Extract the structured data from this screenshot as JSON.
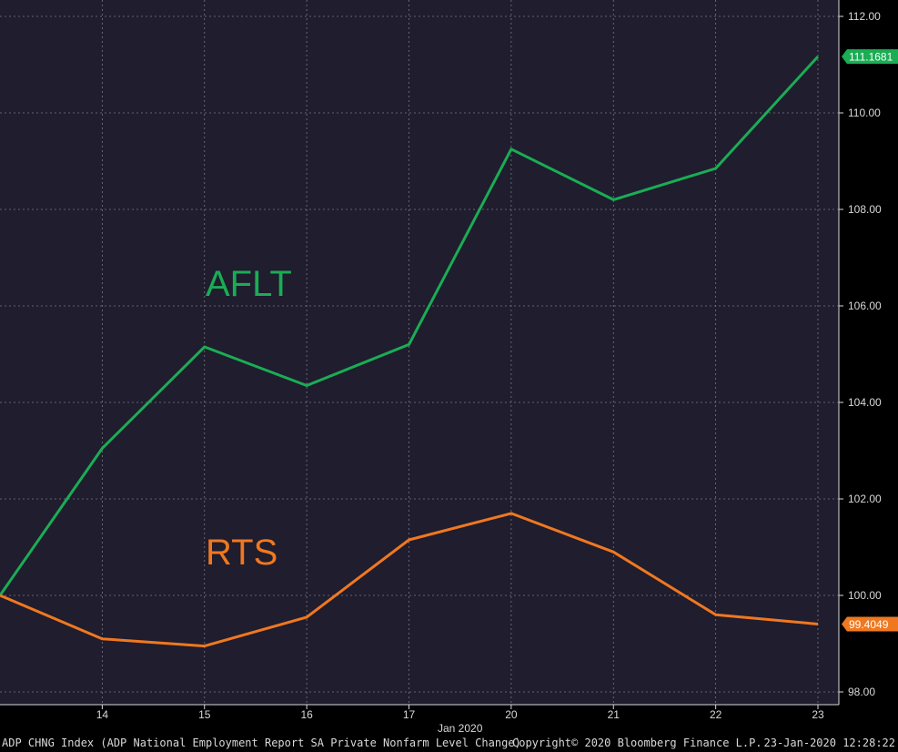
{
  "chart_data": {
    "type": "line",
    "x": [
      "13",
      "14",
      "15",
      "16",
      "17",
      "20",
      "21",
      "22",
      "23"
    ],
    "x_tick_labels": [
      "14",
      "15",
      "16",
      "17",
      "20",
      "21",
      "22",
      "23"
    ],
    "x_sublabel": "Jan 2020",
    "ylim": [
      97.8,
      112.5
    ],
    "y_ticks": [
      "98.00",
      "100.00",
      "102.00",
      "104.00",
      "106.00",
      "108.00",
      "110.00",
      "112.00"
    ],
    "grid": true,
    "series": [
      {
        "name": "AFLT",
        "color": "#1aad54",
        "values": [
          100.0,
          103.05,
          105.15,
          104.35,
          105.2,
          109.25,
          108.2,
          108.85,
          111.1681
        ],
        "last_label": "111.1681"
      },
      {
        "name": "RTS",
        "color": "#f07820",
        "values": [
          100.0,
          99.1,
          98.95,
          99.55,
          101.15,
          101.7,
          100.9,
          99.6,
          99.4049
        ],
        "last_label": "99.4049"
      }
    ],
    "colors": {
      "plot_background": "#1f1d2e",
      "grid": "#7a7a82",
      "axis_text": "#d8d8d8"
    }
  },
  "footer": {
    "left": "ADP CHNG Index (ADP National Employment Report SA Private Nonfarm Level Change)",
    "middle": "Copyright© 2020 Bloomberg Finance L.P.",
    "right": "23-Jan-2020 12:28:22"
  }
}
